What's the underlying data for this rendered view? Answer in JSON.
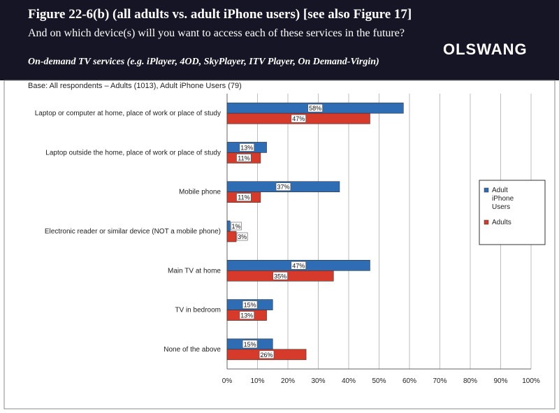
{
  "header": {
    "title": "Figure 22-6(b) (all adults vs. adult iPhone users) [see also Figure 17]",
    "question": "And on which device(s) will you want to access each of these services in the future?",
    "subtitle": "On-demand TV services (e.g. iPlayer, 4OD, SkyPlayer, ITV Player, On Demand-Virgin)",
    "brand": "OLSWANG"
  },
  "base_note": "Base: All respondents – Adults (1013), Adult iPhone Users (79)",
  "colors": {
    "header_bg": "#151526",
    "iphone": "#2e6db4",
    "adults": "#d63a2a"
  },
  "chart_data": {
    "type": "bar",
    "orientation": "horizontal",
    "categories": [
      "Laptop or computer at home, place of work or place of study",
      "Laptop outside the home, place of work or place of study",
      "Mobile phone",
      "Electronic reader or similar device (NOT  a mobile phone)",
      "Main TV at home",
      "TV in bedroom",
      "None of the above"
    ],
    "series": [
      {
        "name": "Adult iPhone Users",
        "legend_lines": [
          "Adult",
          "iPhone",
          "Users"
        ],
        "color": "#2e6db4",
        "values": [
          58,
          13,
          37,
          1,
          47,
          15,
          15
        ]
      },
      {
        "name": "Adults",
        "legend_lines": [
          "Adults"
        ],
        "color": "#d63a2a",
        "values": [
          47,
          11,
          11,
          3,
          35,
          13,
          26
        ]
      }
    ],
    "xlim": [
      0,
      100
    ],
    "xticks": [
      0,
      10,
      20,
      30,
      40,
      50,
      60,
      70,
      80,
      90,
      100
    ],
    "value_suffix": "%",
    "grid": true,
    "legend_position": "right"
  }
}
